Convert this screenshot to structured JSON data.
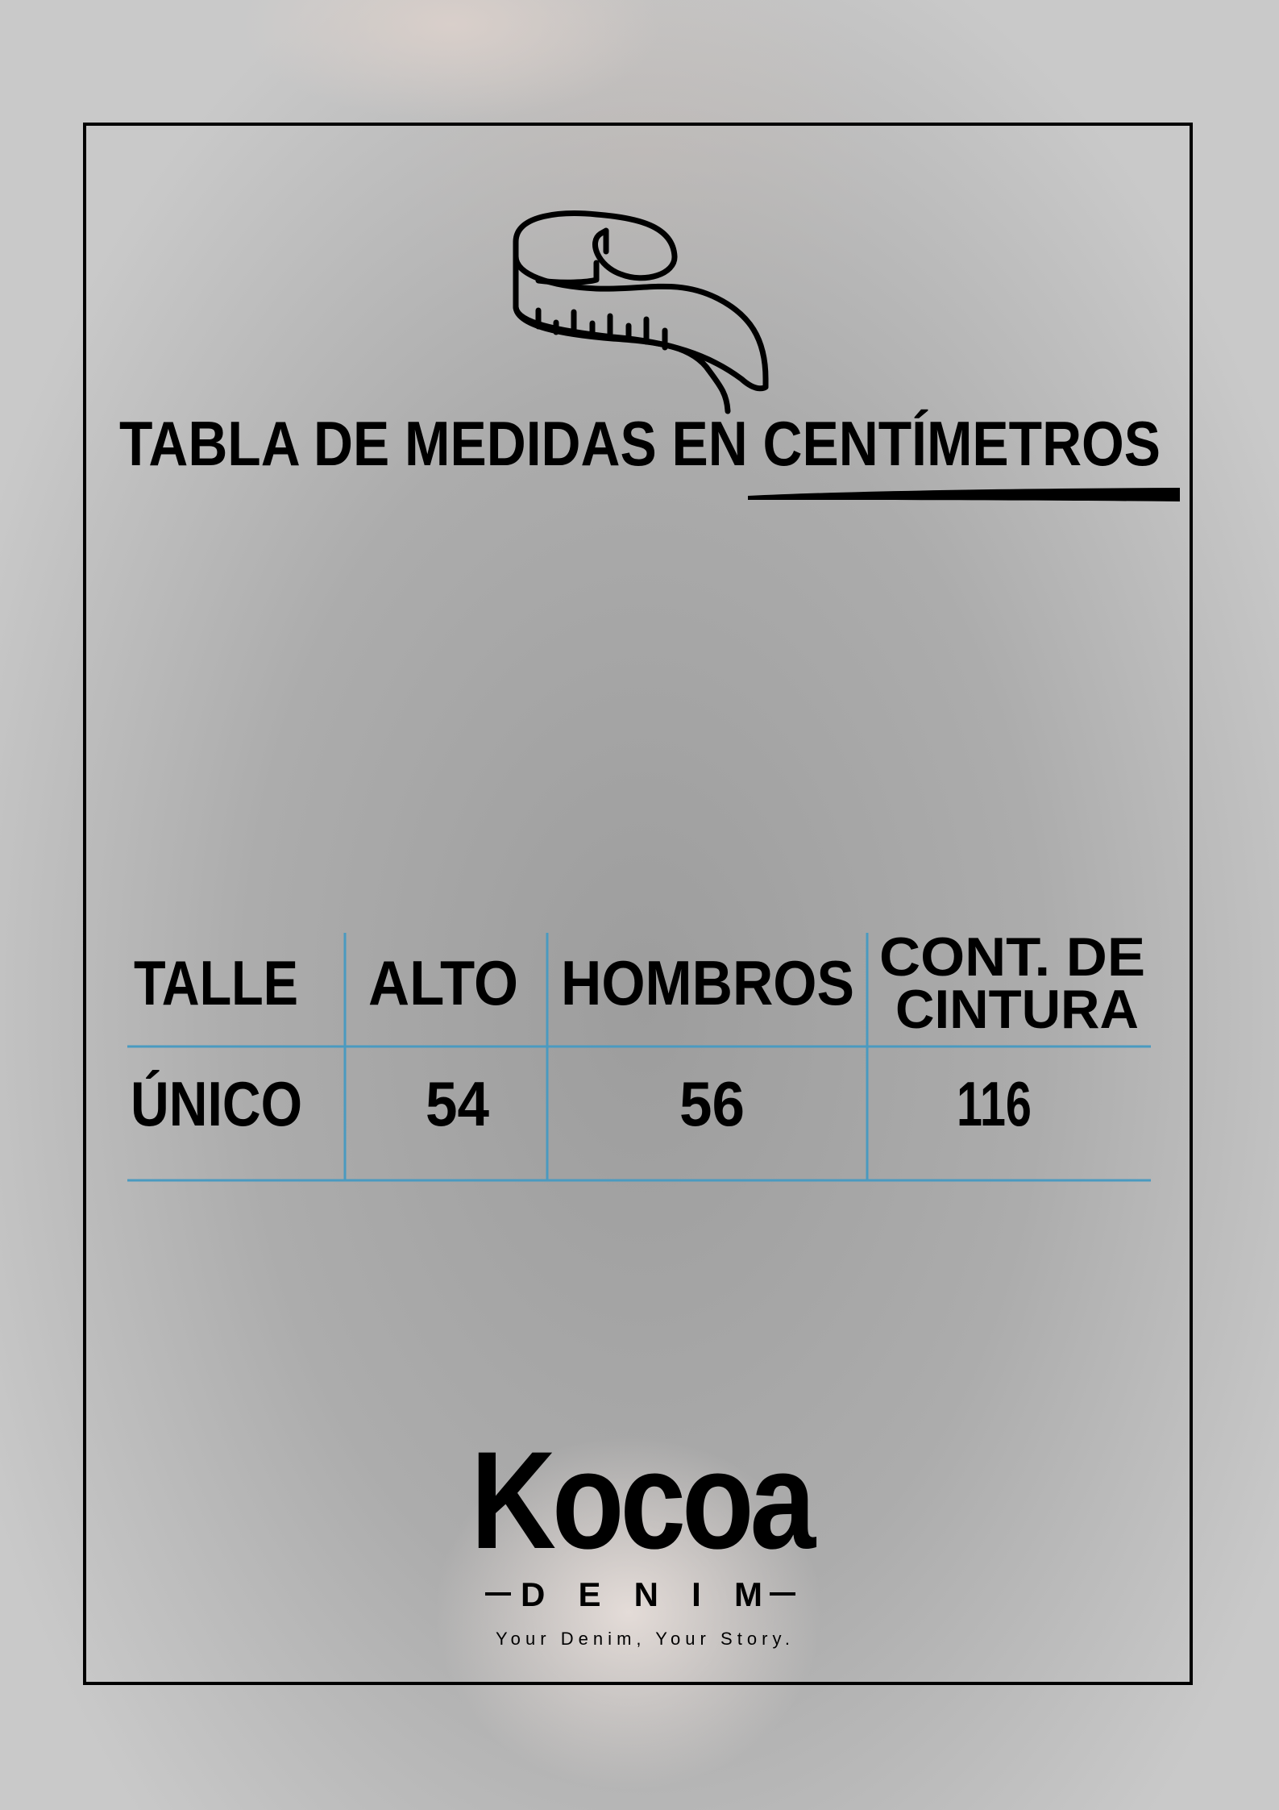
{
  "title": "TABLA DE MEDIDAS EN CENTÍMETROS",
  "icon": "measuring-tape-icon",
  "table": {
    "headers": [
      "TALLE",
      "ALTO",
      "HOMBROS",
      "CONT. DE CINTURA"
    ],
    "header_lines": {
      "cont_line1": "CONT. DE",
      "cont_line2": "CINTURA"
    },
    "rows": [
      [
        "ÚNICO",
        "54",
        "56",
        "116"
      ]
    ],
    "line_color": "#4a9ac0"
  },
  "brand": {
    "name": "Kocoa",
    "sub": "DENIM",
    "tagline": "Your Denim, Your Story."
  }
}
